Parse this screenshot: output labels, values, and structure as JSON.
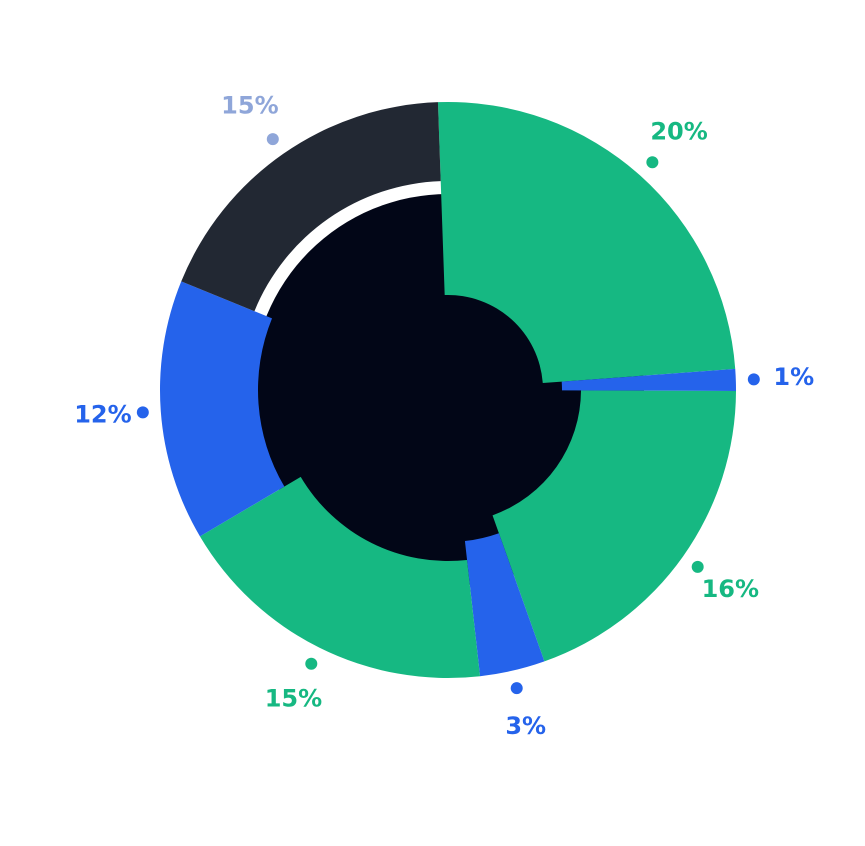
{
  "chart_data": {
    "type": "pie",
    "values": [
      20,
      1,
      16,
      3,
      15,
      12,
      15
    ],
    "value_labels": [
      "20%",
      "1%",
      "16%",
      "3%",
      "15%",
      "12%",
      "15%"
    ],
    "colors": [
      "#16b882",
      "#2563eb",
      "#16b882",
      "#2563eb",
      "#16b882",
      "#2563eb",
      "#222833"
    ],
    "label_colors": [
      "#16b882",
      "#2563eb",
      "#16b882",
      "#2563eb",
      "#16b882",
      "#2563eb",
      "#8fa6d9"
    ]
  }
}
